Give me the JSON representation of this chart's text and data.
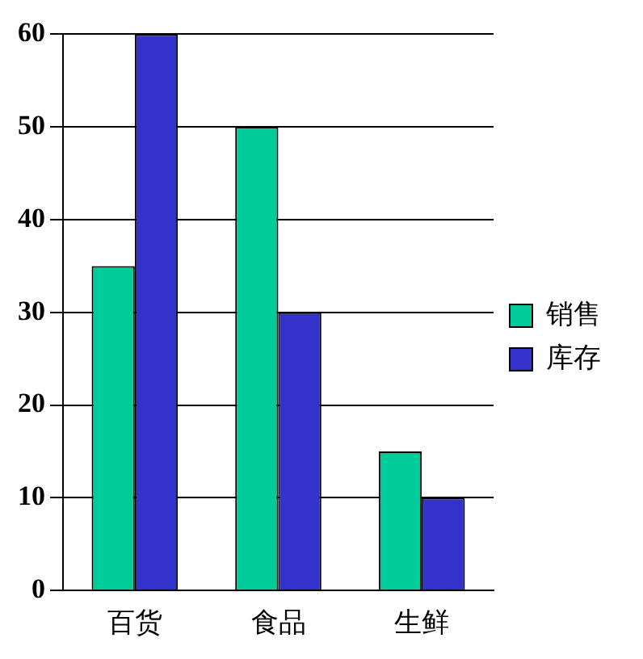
{
  "chart_data": {
    "type": "bar",
    "categories": [
      "百货",
      "食品",
      "生鲜"
    ],
    "series": [
      {
        "name": "销售",
        "color": "#00cc99",
        "values": [
          35,
          50,
          15
        ]
      },
      {
        "name": "库存",
        "color": "#3333cc",
        "values": [
          60,
          30,
          10
        ]
      }
    ],
    "ylim": [
      0,
      60
    ],
    "yticks": [
      0,
      10,
      20,
      30,
      40,
      50,
      60
    ],
    "grid": "y",
    "legend": "right"
  }
}
